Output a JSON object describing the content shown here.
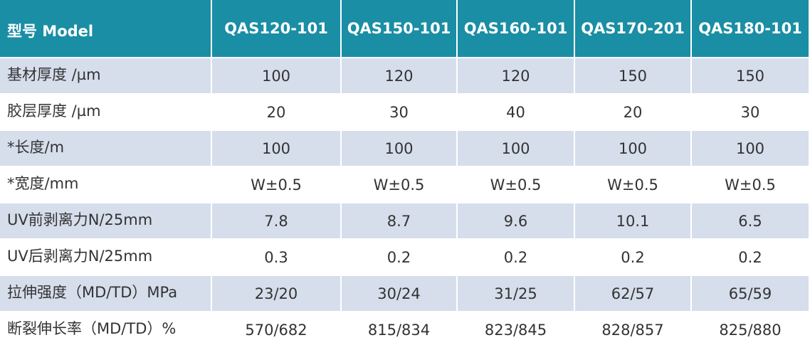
{
  "table": {
    "header": [
      "型号 Model",
      "QAS120-101",
      "QAS150-101",
      "QAS160-101",
      "QAS170-201",
      "QAS180-101"
    ],
    "rows": [
      [
        "基材厚度  /µm",
        "100",
        "120",
        "120",
        "150",
        "150"
      ],
      [
        "胶层厚度  /µm",
        "20",
        "30",
        "40",
        "20",
        "30"
      ],
      [
        "*长度/m",
        "100",
        "100",
        "100",
        "100",
        "100"
      ],
      [
        "*宽度/mm",
        "W±0.5",
        "W±0.5",
        "W±0.5",
        "W±0.5",
        "W±0.5"
      ],
      [
        "UV前剥离力N/25mm",
        "7.8",
        "8.7",
        "9.6",
        "10.1",
        "6.5"
      ],
      [
        "UV后剥离力N/25mm",
        "0.3",
        "0.2",
        "0.2",
        "0.2",
        "0.2"
      ],
      [
        "拉伸强度（MD/TD）MPa",
        "23/20",
        "30/24",
        "31/25",
        "62/57",
        "65/59"
      ],
      [
        "断裂伸长率（MD/TD）%",
        "570/682",
        "815/834",
        "823/845",
        "828/857",
        "825/880"
      ]
    ]
  }
}
